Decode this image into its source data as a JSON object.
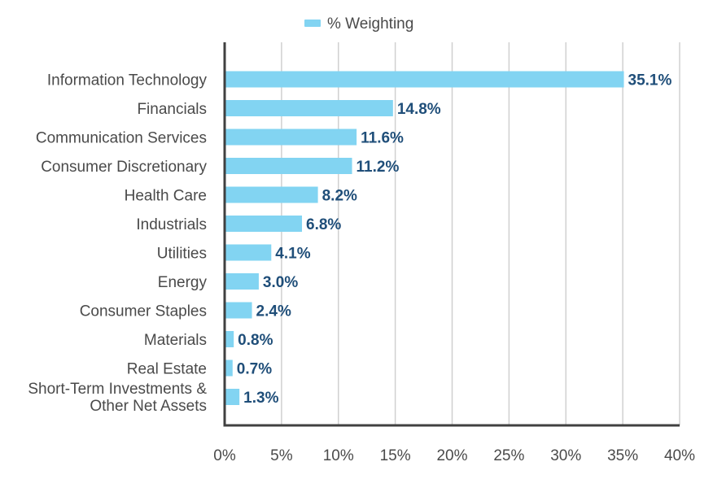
{
  "chart_data": {
    "type": "bar",
    "orientation": "horizontal",
    "categories": [
      "Information Technology",
      "Financials",
      "Communication Services",
      "Consumer Discretionary",
      "Health Care",
      "Industrials",
      "Utilities",
      "Energy",
      "Consumer Staples",
      "Materials",
      "Real Estate",
      "Short-Term Investments & Other Net Assets"
    ],
    "category_lines": [
      [
        "Information Technology"
      ],
      [
        "Financials"
      ],
      [
        "Communication Services"
      ],
      [
        "Consumer Discretionary"
      ],
      [
        "Health Care"
      ],
      [
        "Industrials"
      ],
      [
        "Utilities"
      ],
      [
        "Energy"
      ],
      [
        "Consumer Staples"
      ],
      [
        "Materials"
      ],
      [
        "Real Estate"
      ],
      [
        "Short-Term Investments &",
        "Other Net Assets"
      ]
    ],
    "series": [
      {
        "name": "% Weighting",
        "values": [
          35.1,
          14.8,
          11.6,
          11.2,
          8.2,
          6.8,
          4.1,
          3.0,
          2.4,
          0.8,
          0.7,
          1.3
        ],
        "value_labels": [
          "35.1%",
          "14.8%",
          "11.6%",
          "11.2%",
          "8.2%",
          "6.8%",
          "4.1%",
          "3.0%",
          "2.4%",
          "0.8%",
          "0.7%",
          "1.3%"
        ]
      }
    ],
    "xlim": [
      0,
      40
    ],
    "xticks": [
      0,
      5,
      10,
      15,
      20,
      25,
      30,
      35,
      40
    ],
    "xtick_labels": [
      "0%",
      "5%",
      "10%",
      "15%",
      "20%",
      "25%",
      "30%",
      "35%",
      "40%"
    ],
    "grid": "vertical",
    "legend_position": "top-center",
    "colors": {
      "bar": "#82d4f2",
      "value_label": "#1f4e79",
      "text": "#4a4a4a",
      "grid": "#d0d0d0",
      "axis": "#404040"
    }
  }
}
